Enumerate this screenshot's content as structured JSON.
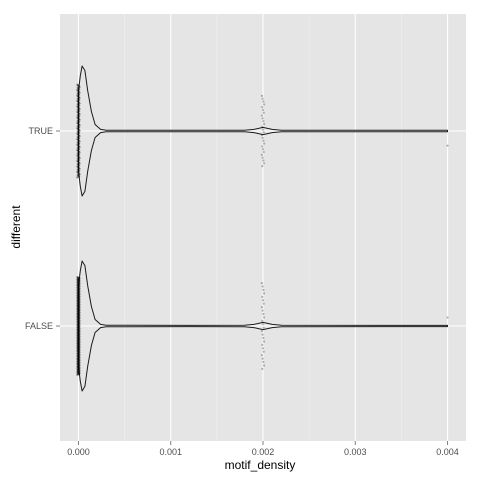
{
  "colors": {
    "panel": "#e5e5e5",
    "grid_major": "#ffffff",
    "grid_minor": "#f0f0f0",
    "violin_stroke": "#1a1a1a",
    "points": "#000000",
    "tick": "#7f7f7f"
  },
  "chart_data": {
    "type": "violin",
    "title": "",
    "xlabel": "motif_density",
    "ylabel": "different",
    "xlim": [
      -0.0002,
      0.0042
    ],
    "xticks": [
      0.0,
      0.001,
      0.002,
      0.003,
      0.004
    ],
    "xtick_labels": [
      "0.000",
      "0.001",
      "0.002",
      "0.003",
      "0.004"
    ],
    "categories": [
      "FALSE",
      "TRUE"
    ],
    "grid": true,
    "series": [
      {
        "category": "TRUE",
        "violin_profile": [
          [
            0.0,
            0.62
          ],
          [
            2e-05,
            0.85
          ],
          [
            4e-05,
            1.0
          ],
          [
            7e-05,
            0.93
          ],
          [
            0.0001,
            0.62
          ],
          [
            0.00014,
            0.3
          ],
          [
            0.00018,
            0.1
          ],
          [
            0.00024,
            0.025
          ],
          [
            0.0003,
            0.012
          ],
          [
            0.0012,
            0.01
          ],
          [
            0.0018,
            0.012
          ],
          [
            0.0019,
            0.024
          ],
          [
            0.002,
            0.055
          ],
          [
            0.0021,
            0.024
          ],
          [
            0.0022,
            0.012
          ],
          [
            0.0035,
            0.01
          ],
          [
            0.004,
            0.01
          ]
        ],
        "point_groups": [
          {
            "x": 0.0,
            "count": 120,
            "spread": 0.95
          },
          {
            "x": 0.002,
            "count": 26,
            "spread": 0.72
          },
          {
            "x": 0.004,
            "count": 1,
            "spread": 0.45
          }
        ]
      },
      {
        "category": "FALSE",
        "violin_profile": [
          [
            0.0,
            0.62
          ],
          [
            2e-05,
            0.85
          ],
          [
            4e-05,
            1.0
          ],
          [
            7e-05,
            0.93
          ],
          [
            0.0001,
            0.62
          ],
          [
            0.00014,
            0.3
          ],
          [
            0.00018,
            0.1
          ],
          [
            0.00024,
            0.025
          ],
          [
            0.0003,
            0.012
          ],
          [
            0.0012,
            0.01
          ],
          [
            0.0018,
            0.012
          ],
          [
            0.0019,
            0.024
          ],
          [
            0.002,
            0.055
          ],
          [
            0.0021,
            0.024
          ],
          [
            0.0022,
            0.012
          ],
          [
            0.0035,
            0.01
          ],
          [
            0.004,
            0.01
          ]
        ],
        "point_groups": [
          {
            "x": 0.0,
            "count": 260,
            "spread": 1.0
          },
          {
            "x": 0.002,
            "count": 26,
            "spread": 0.88
          },
          {
            "x": 0.004,
            "count": 1,
            "spread": -0.26
          }
        ]
      }
    ]
  }
}
